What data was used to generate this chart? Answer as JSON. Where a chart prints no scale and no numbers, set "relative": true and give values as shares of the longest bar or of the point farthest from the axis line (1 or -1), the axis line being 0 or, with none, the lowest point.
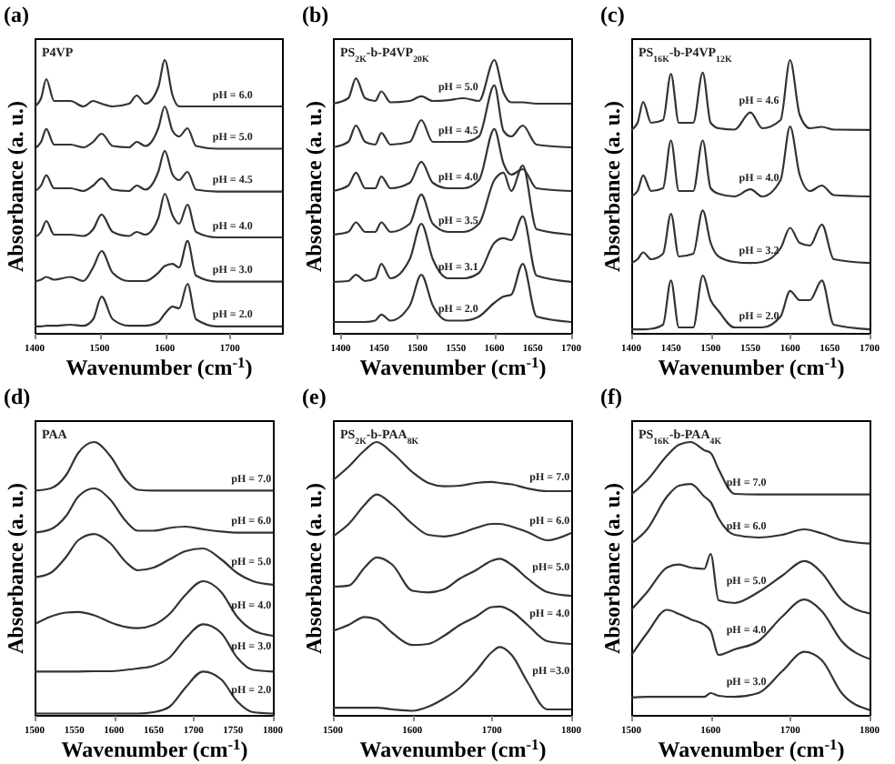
{
  "chart_data": [
    {
      "type": "line",
      "title": "(a)",
      "xlabel": "Wavenumber (cm$^{-1}$)",
      "ylabel": "Absorbance (a. u.)",
      "annotations": [
        "P4VP"
      ],
      "relative": true,
      "xlim": [
        1400,
        1780
      ],
      "xticks": [
        1400,
        1500,
        1600,
        1700
      ],
      "x": [
        1400,
        1410,
        1418,
        1430,
        1455,
        1475,
        1490,
        1503,
        1520,
        1545,
        1557,
        1570,
        1590,
        1600,
        1612,
        1622,
        1635,
        1648,
        1680,
        1780
      ],
      "series": [
        {
          "name": "pH = 6.0",
          "color": "#333333",
          "values": [
            0.83,
            0.86,
            0.93,
            0.85,
            0.85,
            0.83,
            0.85,
            0.84,
            0.83,
            0.84,
            0.87,
            0.84,
            0.9,
            1.0,
            0.87,
            0.83,
            0.83,
            0.83,
            0.83,
            0.83
          ]
        },
        {
          "name": "pH = 5.0",
          "color": "#333333",
          "values": [
            0.675,
            0.7,
            0.747,
            0.69,
            0.69,
            0.68,
            0.7,
            0.73,
            0.685,
            0.68,
            0.7,
            0.685,
            0.75,
            0.83,
            0.74,
            0.72,
            0.75,
            0.685,
            0.675,
            0.675
          ]
        },
        {
          "name": "pH = 4.5",
          "color": "#333333",
          "values": [
            0.518,
            0.54,
            0.578,
            0.53,
            0.53,
            0.52,
            0.54,
            0.566,
            0.525,
            0.52,
            0.54,
            0.525,
            0.59,
            0.667,
            0.58,
            0.56,
            0.59,
            0.525,
            0.518,
            0.518
          ]
        },
        {
          "name": "pH = 4.0",
          "color": "#333333",
          "values": [
            0.35,
            0.37,
            0.41,
            0.36,
            0.36,
            0.355,
            0.38,
            0.434,
            0.37,
            0.355,
            0.37,
            0.36,
            0.42,
            0.51,
            0.43,
            0.4,
            0.47,
            0.37,
            0.35,
            0.35
          ]
        },
        {
          "name": "pH = 3.0",
          "color": "#333333",
          "values": [
            0.188,
            0.195,
            0.205,
            0.195,
            0.205,
            0.19,
            0.24,
            0.3,
            0.22,
            0.19,
            0.19,
            0.19,
            0.22,
            0.245,
            0.253,
            0.24,
            0.337,
            0.21,
            0.188,
            0.188
          ]
        },
        {
          "name": "pH = 2.0",
          "color": "#333333",
          "values": [
            0.024,
            0.024,
            0.026,
            0.026,
            0.03,
            0.026,
            0.05,
            0.133,
            0.05,
            0.026,
            0.026,
            0.026,
            0.04,
            0.07,
            0.096,
            0.09,
            0.18,
            0.05,
            0.024,
            0.024
          ]
        }
      ]
    },
    {
      "type": "line",
      "title": "(b)",
      "xlabel": "Wavenumber (cm$^{-1}$)",
      "ylabel": "Absorbance (a. u.)",
      "annotations": [
        "PS$_{2K}$-b-P4VP$_{20K}$"
      ],
      "relative": true,
      "xlim": [
        1390,
        1700
      ],
      "xticks": [
        1400,
        1450,
        1500,
        1550,
        1600,
        1650,
        1700
      ],
      "x": [
        1390,
        1410,
        1420,
        1432,
        1445,
        1453,
        1465,
        1490,
        1505,
        1520,
        1540,
        1560,
        1580,
        1600,
        1612,
        1622,
        1637,
        1655,
        1700
      ],
      "series": [
        {
          "name": "pH = 5.0",
          "color": "#333333",
          "values": [
            0.84,
            0.86,
            0.933,
            0.86,
            0.85,
            0.885,
            0.845,
            0.85,
            0.867,
            0.85,
            0.853,
            0.86,
            0.85,
            1.0,
            0.88,
            0.845,
            0.845,
            0.84,
            0.84
          ]
        },
        {
          "name": "pH = 4.5",
          "color": "#333333",
          "values": [
            0.68,
            0.7,
            0.76,
            0.7,
            0.69,
            0.733,
            0.69,
            0.7,
            0.78,
            0.7,
            0.7,
            0.7,
            0.72,
            0.907,
            0.74,
            0.72,
            0.76,
            0.69,
            0.68
          ]
        },
        {
          "name": "pH = 4.0",
          "color": "#333333",
          "values": [
            0.52,
            0.54,
            0.587,
            0.53,
            0.53,
            0.573,
            0.53,
            0.55,
            0.627,
            0.55,
            0.53,
            0.53,
            0.56,
            0.747,
            0.62,
            0.58,
            0.6,
            0.53,
            0.52
          ]
        },
        {
          "name": "pH = 3.5",
          "color": "#333333",
          "values": [
            0.36,
            0.37,
            0.405,
            0.37,
            0.37,
            0.405,
            0.37,
            0.4,
            0.507,
            0.4,
            0.37,
            0.37,
            0.4,
            0.56,
            0.587,
            0.52,
            0.613,
            0.38,
            0.36
          ]
        },
        {
          "name": "pH = 3.1",
          "color": "#333333",
          "values": [
            0.187,
            0.19,
            0.213,
            0.19,
            0.2,
            0.253,
            0.2,
            0.27,
            0.4,
            0.27,
            0.2,
            0.2,
            0.22,
            0.33,
            0.347,
            0.34,
            0.427,
            0.21,
            0.187
          ]
        },
        {
          "name": "pH = 2.0",
          "color": "#333333",
          "values": [
            0.04,
            0.04,
            0.04,
            0.04,
            0.045,
            0.067,
            0.045,
            0.1,
            0.213,
            0.1,
            0.045,
            0.045,
            0.06,
            0.11,
            0.133,
            0.14,
            0.253,
            0.06,
            0.04
          ]
        }
      ]
    },
    {
      "type": "line",
      "title": "(c)",
      "xlabel": "Wavenumber (cm$^{-1}$)",
      "ylabel": "Absorbance (a. u.)",
      "annotations": [
        "PS$_{16K}$-b-P4VP$_{12K}$"
      ],
      "relative": true,
      "xlim": [
        1400,
        1700
      ],
      "xticks": [
        1400,
        1450,
        1500,
        1550,
        1600,
        1650,
        1700
      ],
      "x": [
        1400,
        1408,
        1415,
        1425,
        1440,
        1450,
        1460,
        1478,
        1490,
        1500,
        1510,
        1530,
        1550,
        1565,
        1588,
        1600,
        1612,
        1625,
        1640,
        1655,
        1700
      ],
      "series": [
        {
          "name": "pH = 4.6",
          "color": "#333333",
          "values": [
            0.744,
            0.77,
            0.846,
            0.77,
            0.78,
            0.949,
            0.77,
            0.77,
            0.954,
            0.77,
            0.75,
            0.745,
            0.808,
            0.75,
            0.78,
            1.0,
            0.8,
            0.75,
            0.755,
            0.745,
            0.744
          ]
        },
        {
          "name": "pH = 4.0",
          "color": "#333333",
          "values": [
            0.5,
            0.52,
            0.577,
            0.52,
            0.53,
            0.705,
            0.52,
            0.52,
            0.705,
            0.53,
            0.51,
            0.5,
            0.526,
            0.5,
            0.56,
            0.756,
            0.58,
            0.52,
            0.54,
            0.505,
            0.5
          ]
        },
        {
          "name": "pH = 3.2",
          "color": "#333333",
          "values": [
            0.256,
            0.27,
            0.295,
            0.27,
            0.29,
            0.436,
            0.28,
            0.29,
            0.449,
            0.33,
            0.28,
            0.26,
            0.256,
            0.26,
            0.31,
            0.385,
            0.33,
            0.32,
            0.397,
            0.27,
            0.256
          ]
        },
        {
          "name": "pH = 2.0",
          "color": "#333333",
          "values": [
            0.013,
            0.013,
            0.013,
            0.015,
            0.03,
            0.192,
            0.02,
            0.02,
            0.21,
            0.12,
            0.08,
            0.02,
            0.02,
            0.02,
            0.06,
            0.154,
            0.12,
            0.12,
            0.192,
            0.03,
            0.013
          ]
        }
      ]
    },
    {
      "type": "line",
      "title": "(d)",
      "xlabel": "Wavenumber (cm$^{-1}$)",
      "ylabel": "Absorbance (a. u.)",
      "annotations": [
        "PAA"
      ],
      "relative": true,
      "xlim": [
        1500,
        1800
      ],
      "xticks": [
        1500,
        1550,
        1600,
        1650,
        1700,
        1750,
        1800
      ],
      "x": [
        1500,
        1520,
        1540,
        1555,
        1575,
        1595,
        1615,
        1630,
        1650,
        1670,
        1690,
        1712,
        1735,
        1755,
        1775,
        1800
      ],
      "series": [
        {
          "name": "pH = 7.0",
          "color": "#333333",
          "values": [
            0.822,
            0.83,
            0.88,
            0.96,
            1.0,
            0.95,
            0.86,
            0.825,
            0.822,
            0.822,
            0.822,
            0.822,
            0.822,
            0.822,
            0.822,
            0.822
          ]
        },
        {
          "name": "pH = 6.0",
          "color": "#333333",
          "values": [
            0.668,
            0.68,
            0.73,
            0.8,
            0.83,
            0.79,
            0.71,
            0.675,
            0.675,
            0.685,
            0.69,
            0.68,
            0.672,
            0.668,
            0.668,
            0.668
          ]
        },
        {
          "name": "pH = 5.0",
          "color": "#333333",
          "values": [
            0.504,
            0.52,
            0.58,
            0.64,
            0.663,
            0.63,
            0.56,
            0.53,
            0.54,
            0.57,
            0.6,
            0.61,
            0.57,
            0.52,
            0.49,
            0.477
          ]
        },
        {
          "name": "pH = 4.0",
          "color": "#333333",
          "values": [
            0.332,
            0.36,
            0.375,
            0.377,
            0.365,
            0.34,
            0.322,
            0.318,
            0.33,
            0.37,
            0.44,
            0.49,
            0.45,
            0.36,
            0.31,
            0.29
          ]
        },
        {
          "name": "pH = 3.0",
          "color": "#333333",
          "values": [
            0.159,
            0.159,
            0.159,
            0.159,
            0.16,
            0.16,
            0.165,
            0.17,
            0.18,
            0.21,
            0.28,
            0.332,
            0.3,
            0.21,
            0.165,
            0.159
          ]
        },
        {
          "name": "pH = 2.0",
          "color": "#333333",
          "values": [
            0.005,
            0.005,
            0.005,
            0.005,
            0.005,
            0.005,
            0.005,
            0.005,
            0.01,
            0.03,
            0.1,
            0.159,
            0.13,
            0.05,
            0.01,
            0.005
          ]
        }
      ]
    },
    {
      "type": "line",
      "title": "(e)",
      "xlabel": "Wavenumber (cm$^{-1}$)",
      "ylabel": "Absorbance (a. u.)",
      "annotations": [
        "PS$_{2K}$-b-PAA$_{8K}$"
      ],
      "relative": true,
      "xlim": [
        1500,
        1800
      ],
      "xticks": [
        1500,
        1600,
        1700,
        1800
      ],
      "x": [
        1500,
        1520,
        1540,
        1555,
        1575,
        1600,
        1620,
        1640,
        1660,
        1680,
        1700,
        1710,
        1725,
        1745,
        1770,
        1800
      ],
      "series": [
        {
          "name": "pH = 7.0",
          "color": "#333333",
          "values": [
            0.86,
            0.91,
            0.97,
            1.0,
            0.96,
            0.89,
            0.85,
            0.838,
            0.84,
            0.85,
            0.854,
            0.85,
            0.845,
            0.83,
            0.82,
            0.82
          ]
        },
        {
          "name": "pH = 6.0",
          "color": "#333333",
          "values": [
            0.654,
            0.7,
            0.77,
            0.808,
            0.77,
            0.7,
            0.66,
            0.654,
            0.665,
            0.685,
            0.7,
            0.7,
            0.69,
            0.67,
            0.64,
            0.667
          ]
        },
        {
          "name": "pH= 5.0",
          "color": "#333333",
          "values": [
            0.47,
            0.474,
            0.54,
            0.577,
            0.55,
            0.455,
            0.449,
            0.46,
            0.5,
            0.53,
            0.565,
            0.572,
            0.55,
            0.5,
            0.45,
            0.436
          ]
        },
        {
          "name": "pH = 4.0",
          "color": "#333333",
          "values": [
            0.308,
            0.33,
            0.359,
            0.35,
            0.3,
            0.256,
            0.26,
            0.29,
            0.33,
            0.36,
            0.395,
            0.397,
            0.38,
            0.33,
            0.27,
            0.26
          ]
        },
        {
          "name": "pH =3.0",
          "color": "#333333",
          "values": [
            0.026,
            0.026,
            0.026,
            0.026,
            0.02,
            0.015,
            0.03,
            0.06,
            0.1,
            0.16,
            0.23,
            0.249,
            0.22,
            0.12,
            0.02,
            0.02
          ]
        }
      ]
    },
    {
      "type": "line",
      "title": "(f)",
      "xlabel": "Wavenumber (cm$^{-1}$)",
      "ylabel": "Absorbance (a. u.)",
      "annotations": [
        "PS$_{16K}$-b-PAA$_{4K}$"
      ],
      "relative": true,
      "xlim": [
        1500,
        1800
      ],
      "xticks": [
        1500,
        1600,
        1700,
        1800
      ],
      "x": [
        1500,
        1520,
        1545,
        1560,
        1575,
        1592,
        1600,
        1610,
        1630,
        1660,
        1690,
        1718,
        1740,
        1765,
        1800
      ],
      "series": [
        {
          "name": "pH = 7.0",
          "color": "#333333",
          "values": [
            0.808,
            0.86,
            0.95,
            0.99,
            1.0,
            0.97,
            0.96,
            0.9,
            0.81,
            0.808,
            0.808,
            0.808,
            0.808,
            0.808,
            0.808
          ]
        },
        {
          "name": "pH = 6.0",
          "color": "#333333",
          "values": [
            0.628,
            0.68,
            0.8,
            0.84,
            0.846,
            0.8,
            0.78,
            0.72,
            0.66,
            0.65,
            0.66,
            0.68,
            0.665,
            0.64,
            0.628
          ]
        },
        {
          "name": "pH = 5.0",
          "color": "#333333",
          "values": [
            0.385,
            0.45,
            0.54,
            0.551,
            0.54,
            0.535,
            0.59,
            0.42,
            0.41,
            0.45,
            0.51,
            0.564,
            0.52,
            0.42,
            0.372
          ]
        },
        {
          "name": "pH = 4.0",
          "color": "#333333",
          "values": [
            0.218,
            0.3,
            0.385,
            0.37,
            0.35,
            0.33,
            0.308,
            0.22,
            0.24,
            0.27,
            0.36,
            0.423,
            0.38,
            0.27,
            0.205
          ]
        },
        {
          "name": "pH = 3.0",
          "color": "#333333",
          "values": [
            0.064,
            0.066,
            0.066,
            0.066,
            0.066,
            0.066,
            0.08,
            0.07,
            0.066,
            0.08,
            0.16,
            0.231,
            0.2,
            0.08,
            0.018
          ]
        }
      ]
    }
  ]
}
